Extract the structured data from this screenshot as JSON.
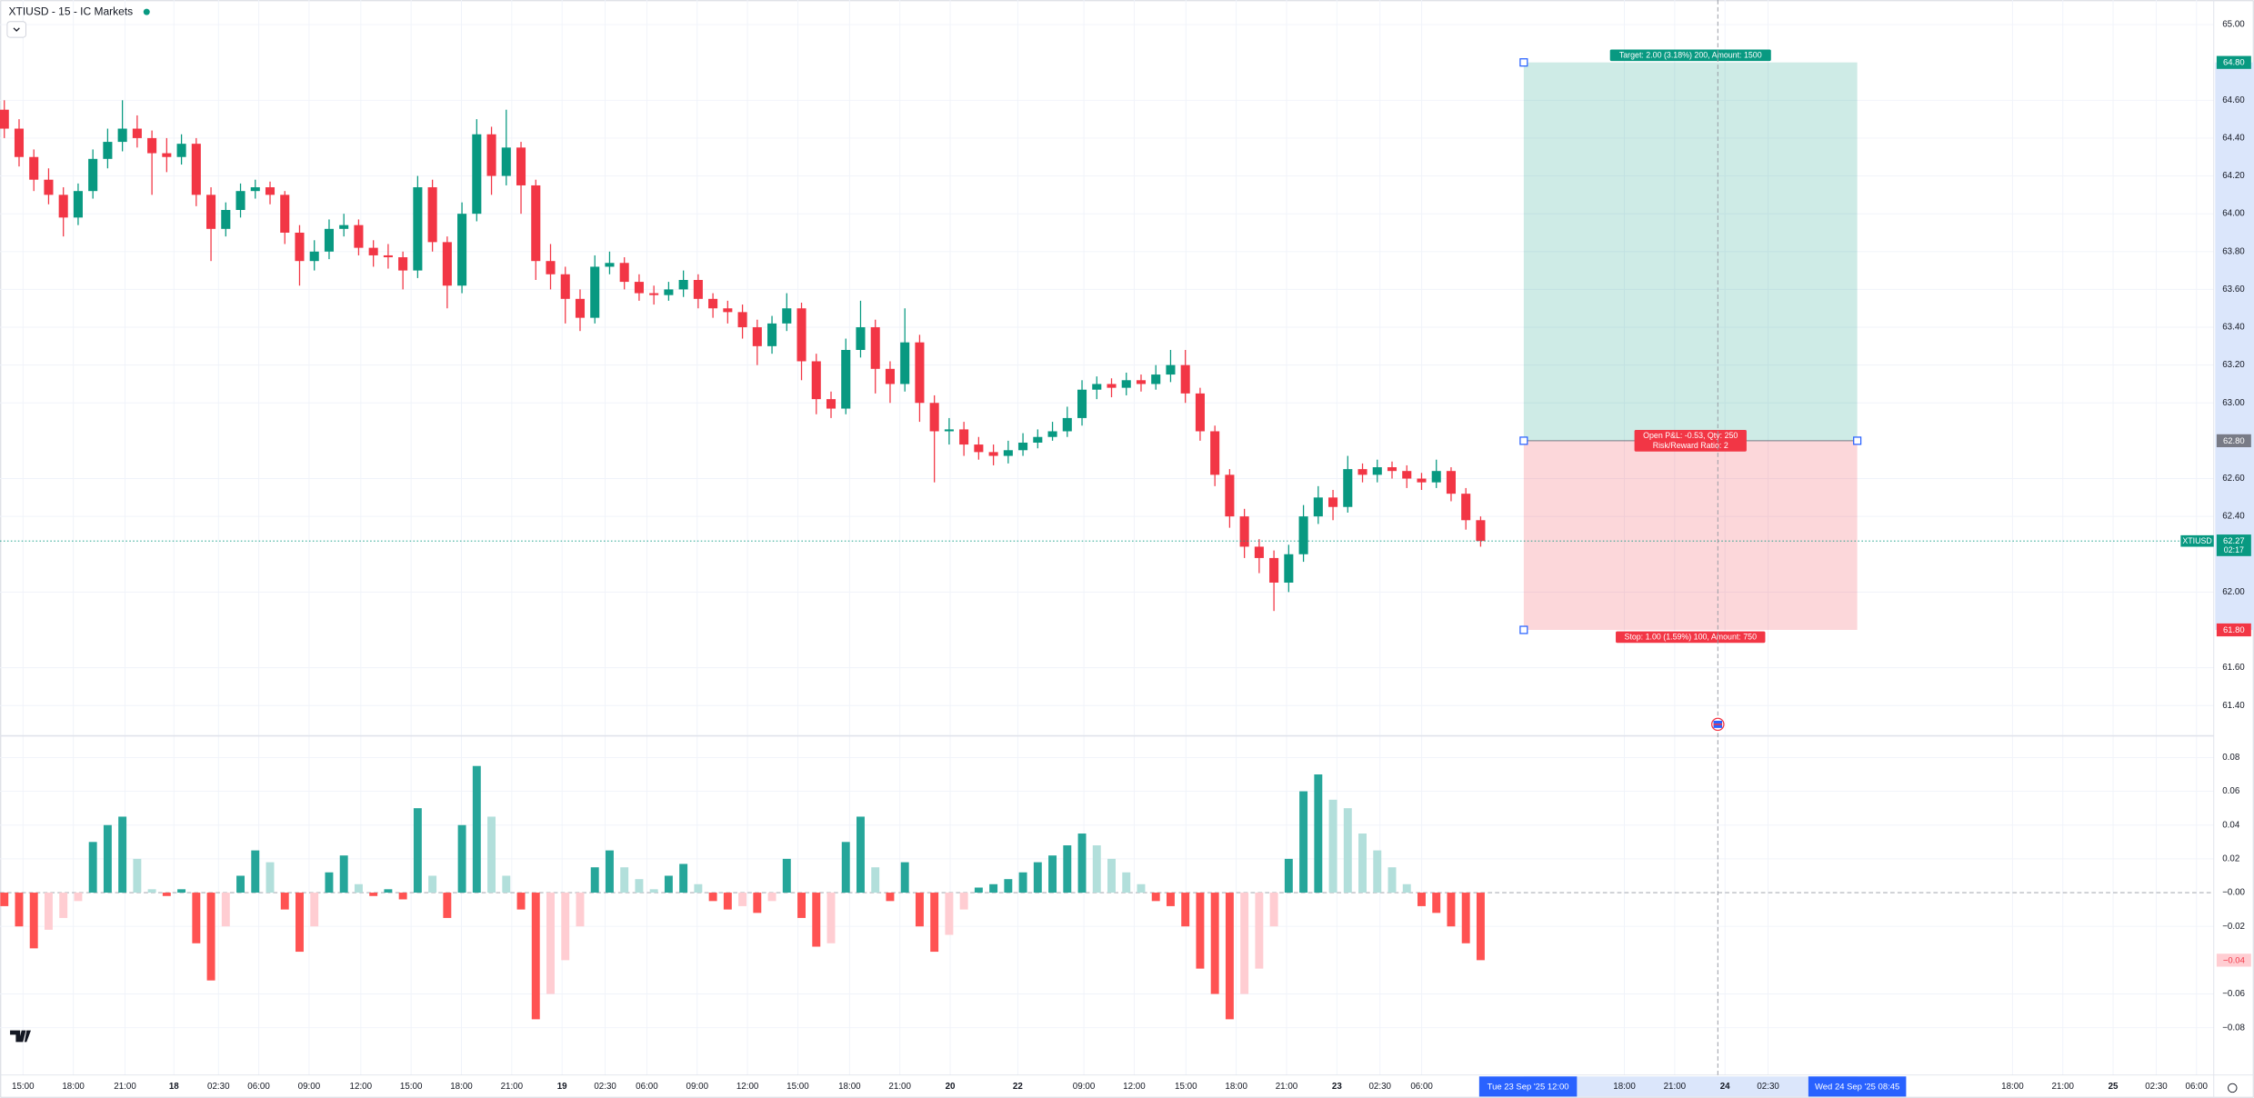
{
  "header": {
    "title": "XTIUSD - 15 - IC Markets"
  },
  "chart_data": [
    {
      "type": "candlestick",
      "ylim": [
        61.24,
        65.13
      ],
      "yticks": [
        {
          "value": 65,
          "label": "65.00"
        },
        {
          "value": 64.6,
          "label": "64.60"
        },
        {
          "value": 64.4,
          "label": "64.40"
        },
        {
          "value": 64.2,
          "label": "64.20"
        },
        {
          "value": 64,
          "label": "64.00"
        },
        {
          "value": 63.8,
          "label": "63.80"
        },
        {
          "value": 63.6,
          "label": "63.60"
        },
        {
          "value": 63.4,
          "label": "63.40"
        },
        {
          "value": 63.2,
          "label": "63.20"
        },
        {
          "value": 63,
          "label": "63.00"
        },
        {
          "value": 62.6,
          "label": "62.60"
        },
        {
          "value": 62.4,
          "label": "62.40"
        },
        {
          "value": 62,
          "label": "62.00"
        },
        {
          "value": 61.6,
          "label": "61.60"
        },
        {
          "value": 61.4,
          "label": "61.40"
        }
      ],
      "open": [
        64.55,
        64.45,
        64.3,
        64.18,
        64.1,
        63.98,
        64.12,
        64.29,
        64.38,
        64.45,
        64.4,
        64.32,
        64.3,
        64.37,
        64.1,
        63.92,
        64.02,
        64.12,
        64.14,
        64.1,
        63.9,
        63.75,
        63.8,
        63.92,
        63.94,
        63.82,
        63.78,
        63.77,
        63.7,
        64.14,
        63.85,
        63.62,
        64.0,
        64.42,
        64.2,
        64.35,
        64.15,
        63.75,
        63.68,
        63.55,
        63.45,
        63.72,
        63.74,
        63.64,
        63.58,
        63.57,
        63.6,
        63.65,
        63.55,
        63.5,
        63.48,
        63.4,
        63.3,
        63.42,
        63.5,
        63.22,
        63.02,
        62.97,
        63.28,
        63.4,
        63.18,
        63.1,
        63.32,
        63.0,
        62.85,
        62.86,
        62.78,
        62.74,
        62.72,
        62.75,
        62.79,
        62.82,
        62.85,
        62.92,
        63.07,
        63.1,
        63.08,
        63.12,
        63.1,
        63.15,
        63.2,
        63.05,
        62.85,
        62.62,
        62.4,
        62.24,
        62.18,
        62.05,
        62.2,
        62.4,
        62.5,
        62.45,
        62.65,
        62.62,
        62.66,
        62.64,
        62.6,
        62.58,
        62.64,
        62.52,
        62.38
      ],
      "high": [
        64.6,
        64.5,
        64.34,
        64.24,
        64.14,
        64.16,
        64.34,
        64.45,
        64.6,
        64.52,
        64.44,
        64.4,
        64.42,
        64.4,
        64.14,
        64.06,
        64.16,
        64.18,
        64.17,
        64.12,
        63.94,
        63.86,
        63.97,
        64.0,
        63.97,
        63.86,
        63.84,
        63.8,
        64.2,
        64.18,
        63.88,
        64.06,
        64.5,
        64.46,
        64.55,
        64.38,
        64.18,
        63.84,
        63.72,
        63.6,
        63.78,
        63.8,
        63.77,
        63.68,
        63.62,
        63.64,
        63.7,
        63.68,
        63.58,
        63.54,
        63.52,
        63.44,
        63.46,
        63.58,
        63.53,
        63.26,
        63.06,
        63.34,
        63.54,
        63.44,
        63.22,
        63.5,
        63.36,
        63.04,
        62.92,
        62.9,
        62.82,
        62.78,
        62.8,
        62.84,
        62.86,
        62.9,
        62.98,
        63.12,
        63.14,
        63.13,
        63.16,
        63.15,
        63.2,
        63.28,
        63.28,
        63.08,
        62.88,
        62.65,
        62.44,
        62.28,
        62.22,
        62.25,
        62.46,
        62.56,
        62.54,
        62.72,
        62.68,
        62.7,
        62.69,
        62.67,
        62.63,
        62.7,
        62.66,
        62.55,
        62.4
      ],
      "low": [
        64.4,
        64.25,
        64.12,
        64.05,
        63.88,
        63.94,
        64.08,
        64.24,
        64.33,
        64.35,
        64.1,
        64.22,
        64.26,
        64.04,
        63.75,
        63.88,
        63.98,
        64.08,
        64.05,
        63.84,
        63.62,
        63.7,
        63.76,
        63.88,
        63.78,
        63.72,
        63.71,
        63.6,
        63.66,
        63.8,
        63.5,
        63.58,
        63.96,
        64.1,
        64.15,
        64.0,
        63.65,
        63.6,
        63.42,
        63.38,
        63.42,
        63.68,
        63.6,
        63.54,
        63.52,
        63.54,
        63.56,
        63.5,
        63.45,
        63.42,
        63.34,
        63.2,
        63.26,
        63.38,
        63.12,
        62.94,
        62.92,
        62.94,
        63.24,
        63.05,
        63.0,
        63.06,
        62.9,
        62.58,
        62.78,
        62.72,
        62.7,
        62.67,
        62.68,
        62.72,
        62.76,
        62.8,
        62.82,
        62.88,
        63.02,
        63.03,
        63.04,
        63.06,
        63.07,
        63.11,
        63.0,
        62.8,
        62.56,
        62.34,
        62.18,
        62.1,
        61.9,
        62.0,
        62.16,
        62.36,
        62.38,
        62.42,
        62.58,
        62.58,
        62.6,
        62.55,
        62.54,
        62.55,
        62.48,
        62.33,
        62.24
      ],
      "close": [
        64.45,
        64.3,
        64.18,
        64.1,
        63.98,
        64.12,
        64.29,
        64.38,
        64.45,
        64.4,
        64.32,
        64.3,
        64.37,
        64.1,
        63.92,
        64.02,
        64.12,
        64.14,
        64.1,
        63.9,
        63.75,
        63.8,
        63.92,
        63.94,
        63.82,
        63.78,
        63.77,
        63.7,
        64.14,
        63.85,
        63.62,
        64.0,
        64.42,
        64.2,
        64.35,
        64.15,
        63.75,
        63.68,
        63.55,
        63.45,
        63.72,
        63.74,
        63.64,
        63.58,
        63.57,
        63.6,
        63.65,
        63.55,
        63.5,
        63.48,
        63.4,
        63.3,
        63.42,
        63.5,
        63.22,
        63.02,
        62.97,
        63.28,
        63.4,
        63.18,
        63.1,
        63.32,
        63.0,
        62.85,
        62.86,
        62.78,
        62.74,
        62.72,
        62.75,
        62.79,
        62.82,
        62.85,
        62.92,
        63.07,
        63.1,
        63.08,
        63.12,
        63.1,
        63.15,
        63.2,
        63.05,
        62.85,
        62.62,
        62.4,
        62.24,
        62.18,
        62.05,
        62.2,
        62.4,
        62.5,
        62.45,
        62.65,
        62.62,
        62.66,
        62.64,
        62.6,
        62.58,
        62.64,
        62.52,
        62.38,
        62.27
      ],
      "up_color": "#089981",
      "down_color": "#f23645",
      "last_price": {
        "value": 62.27,
        "label": "62.27"
      },
      "symbol": "XTIUSD",
      "countdown": "02:17",
      "position": {
        "target": {
          "value": 64.8,
          "label": "64.80"
        },
        "entry": {
          "value": 62.8,
          "label": "62.80"
        },
        "stop": {
          "value": 61.8,
          "label": "61.80"
        },
        "target_text": "Target: 2.00 (3.18%) 200, Amount: 1500",
        "pnl_text": "Open P&L: -0.53, Qty: 250",
        "ratio_text": "Risk/Reward Ratio: 2",
        "stop_text": "Stop: 1.00 (1.59%) 100, Amount: 750"
      }
    },
    {
      "type": "histogram",
      "ylim": [
        -0.108,
        0.092
      ],
      "yticks": [
        0.08,
        0.06,
        0.04,
        0.02,
        {
          "value": 0,
          "label": "−0.00"
        },
        {
          "value": -0.02,
          "label": "−0.02"
        },
        {
          "value": -0.06,
          "label": "−0.06"
        },
        {
          "value": -0.08,
          "label": "−0.08"
        }
      ],
      "values": [
        -0.008,
        -0.02,
        -0.033,
        -0.022,
        -0.015,
        -0.005,
        0.03,
        0.04,
        0.045,
        0.02,
        0.002,
        -0.002,
        0.002,
        -0.03,
        -0.052,
        -0.02,
        0.01,
        0.025,
        0.018,
        -0.01,
        -0.035,
        -0.02,
        0.012,
        0.022,
        0.005,
        -0.002,
        0.002,
        -0.004,
        0.05,
        0.01,
        -0.015,
        0.04,
        0.075,
        0.045,
        0.01,
        -0.01,
        -0.075,
        -0.06,
        -0.04,
        -0.02,
        0.015,
        0.025,
        0.015,
        0.008,
        0.002,
        0.01,
        0.017,
        0.005,
        -0.005,
        -0.01,
        -0.008,
        -0.012,
        -0.005,
        0.02,
        -0.015,
        -0.032,
        -0.03,
        0.03,
        0.045,
        0.015,
        -0.005,
        0.018,
        -0.02,
        -0.035,
        -0.025,
        -0.01,
        0.003,
        0.005,
        0.008,
        0.012,
        0.018,
        0.022,
        0.028,
        0.035,
        0.028,
        0.02,
        0.012,
        0.005,
        -0.005,
        -0.008,
        -0.02,
        -0.045,
        -0.06,
        -0.075,
        -0.06,
        -0.045,
        -0.02,
        0.02,
        0.06,
        0.07,
        0.055,
        0.05,
        0.035,
        0.025,
        0.015,
        0.005,
        -0.008,
        -0.012,
        -0.02,
        -0.03,
        -0.04
      ],
      "last_value": {
        "value": -0.04,
        "label": "−0.04"
      },
      "colors": [
        "#26a69a",
        "#b2dfdb",
        "#ff5252",
        "#ffcdd2"
      ]
    }
  ],
  "time_axis": {
    "labels": [
      "15:00",
      "18:00",
      "21:00",
      "18",
      "02:30",
      "06:00",
      "09:00",
      "12:00",
      "15:00",
      "18:00",
      "21:00",
      "19",
      "02:30",
      "06:00",
      "09:00",
      "12:00",
      "15:00",
      "18:00",
      "21:00",
      "20",
      "22",
      "09:00",
      "12:00",
      "15:00",
      "18:00",
      "21:00",
      "23",
      "02:30",
      "06:00",
      "18:00",
      "21:00",
      "24",
      "02:30",
      "18:00",
      "21:00",
      "25",
      "02:30",
      "06:00"
    ],
    "start_label": "Tue 23 Sep '25   12:00",
    "cursor_label": "Wed 24 Sep '25   08:45"
  }
}
